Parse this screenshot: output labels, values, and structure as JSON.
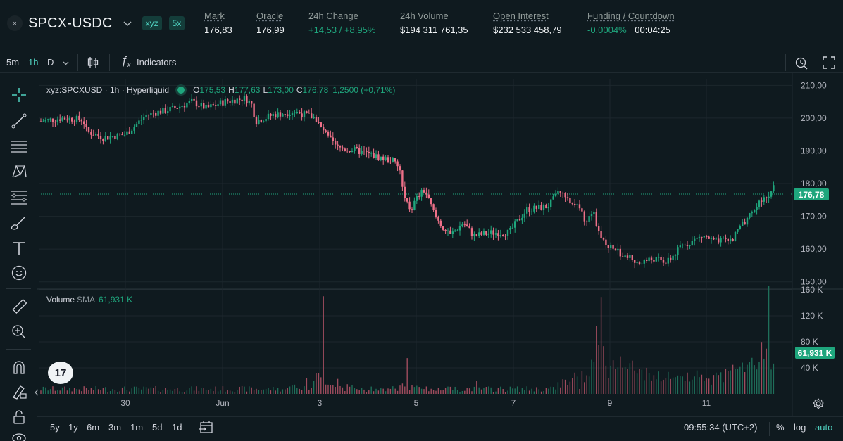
{
  "market": {
    "coin_icon": "×",
    "pair": "SPCX-USDC",
    "badge_dex": "xyz",
    "badge_leverage": "5x",
    "stats": [
      {
        "label": "Mark",
        "value": "176,83",
        "green": false,
        "dotted": true
      },
      {
        "label": "Oracle",
        "value": "176,99",
        "green": false,
        "dotted": true
      },
      {
        "label": "24h Change",
        "value": "+14,53 / +8,95%",
        "green": true,
        "dotted": false
      },
      {
        "label": "24h Volume",
        "value": "$194 311 761,35",
        "green": false,
        "dotted": false
      },
      {
        "label": "Open Interest",
        "value": "$232 533 458,79",
        "green": false,
        "dotted": true
      },
      {
        "label": "Funding / Countdown",
        "value_funding": "-0,0004%",
        "value_countdown": "00:04:25",
        "dotted": true
      }
    ]
  },
  "toolbar": {
    "intervals": [
      "5m",
      "1h",
      "D"
    ],
    "active_interval": "1h",
    "indicators_label": "Indicators",
    "icons": [
      "chevron-down-icon",
      "candlestick-type-icon",
      "fx-icon",
      "snapshot-icon",
      "fullscreen-icon"
    ]
  },
  "left_tools": [
    "crosshair-icon",
    "trend-line-icon",
    "horizontal-lines-icon",
    "pattern-icon",
    "fib-icon",
    "brush-icon",
    "text-icon",
    "emoji-icon",
    "ruler-icon",
    "zoom-in-icon",
    "magnet-icon",
    "lock-draw-icon",
    "unlock-icon",
    "eye-icon"
  ],
  "legend": {
    "symbol": "xyz:SPCXUSD · 1h · Hyperliquid",
    "o_label": "O",
    "o": "175,53",
    "h_label": "H",
    "h": "177,63",
    "l_label": "L",
    "l": "173,00",
    "c_label": "C",
    "c": "176,78",
    "change": "1,2500 (+0,71%)"
  },
  "volume_legend": {
    "title": "Volume",
    "sma": "SMA",
    "value": "61,931 K"
  },
  "price_tag": "176,78",
  "volume_tag": "61,931 K",
  "tv_logo": "17",
  "bottom": {
    "ranges": [
      "5y",
      "1y",
      "6m",
      "3m",
      "1m",
      "5d",
      "1d"
    ],
    "time": "09:55:34 (UTC+2)",
    "percent": "%",
    "log": "log",
    "auto": "auto"
  },
  "chart_data": {
    "type": "candlestick",
    "price_axis": {
      "ticks": [
        "210,00",
        "200,00",
        "190,00",
        "180,00",
        "170,00",
        "160,00",
        "150,00"
      ],
      "range": [
        148,
        212
      ]
    },
    "volume_axis": {
      "ticks": [
        "160 K",
        "120 K",
        "80 K",
        "40 K"
      ],
      "range": [
        0,
        160
      ]
    },
    "x_labels": [
      "30",
      "Jun",
      "3",
      "5",
      "7",
      "9",
      "11"
    ],
    "last_price": 176.78,
    "close_path": [
      [
        0,
        199
      ],
      [
        30,
        200
      ],
      [
        60,
        199.5
      ],
      [
        65,
        196
      ],
      [
        90,
        194
      ],
      [
        120,
        195
      ],
      [
        150,
        201
      ],
      [
        190,
        203
      ],
      [
        215,
        205
      ],
      [
        235,
        203
      ],
      [
        260,
        205
      ],
      [
        290,
        206
      ],
      [
        300,
        204
      ],
      [
        305,
        199
      ],
      [
        330,
        201
      ],
      [
        360,
        202
      ],
      [
        390,
        200
      ],
      [
        400,
        196
      ],
      [
        420,
        191
      ],
      [
        450,
        190
      ],
      [
        480,
        188
      ],
      [
        500,
        187
      ],
      [
        510,
        184
      ],
      [
        515,
        176
      ],
      [
        525,
        172
      ],
      [
        535,
        176
      ],
      [
        545,
        178
      ],
      [
        560,
        170
      ],
      [
        570,
        167
      ],
      [
        580,
        164
      ],
      [
        600,
        168
      ],
      [
        615,
        164
      ],
      [
        640,
        165
      ],
      [
        665,
        165
      ],
      [
        675,
        168
      ],
      [
        690,
        172
      ],
      [
        720,
        173
      ],
      [
        735,
        177
      ],
      [
        760,
        174
      ],
      [
        775,
        168
      ],
      [
        785,
        171
      ],
      [
        795,
        163
      ],
      [
        810,
        160
      ],
      [
        830,
        158
      ],
      [
        850,
        156
      ],
      [
        870,
        157
      ],
      [
        890,
        156
      ],
      [
        910,
        161
      ],
      [
        940,
        164
      ],
      [
        960,
        162
      ],
      [
        980,
        163
      ],
      [
        995,
        167
      ],
      [
        1010,
        171
      ],
      [
        1025,
        175
      ],
      [
        1035,
        177
      ],
      [
        1042,
        181
      ]
    ],
    "volume_spikes": [
      [
        400,
        150
      ],
      [
        520,
        55
      ],
      [
        795,
        125
      ],
      [
        1035,
        140
      ],
      [
        790,
        75
      ],
      [
        620,
        20
      ],
      [
        300,
        10
      ]
    ]
  }
}
